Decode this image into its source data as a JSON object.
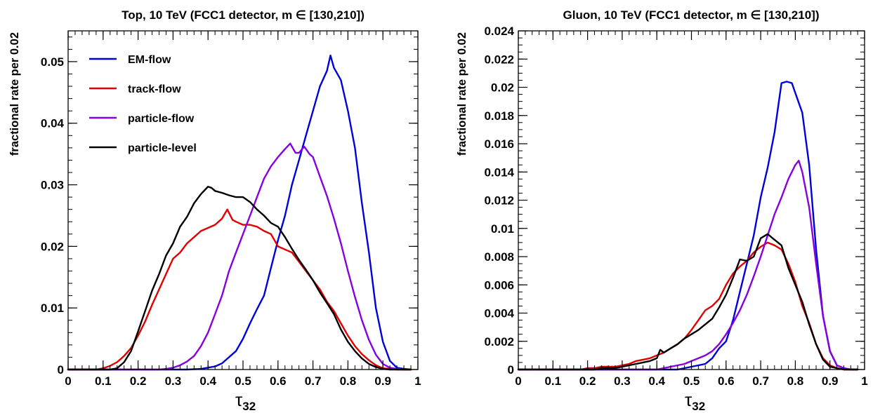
{
  "chart_data": [
    {
      "type": "line",
      "title": "Top, 10 TeV (FCC1 detector, m ∈ [130,210])",
      "xlabel_symbol": "τ",
      "xlabel_sub": "32",
      "ylabel": "fractional rate per 0.02",
      "xlim": [
        0,
        1
      ],
      "ylim": [
        0,
        0.055
      ],
      "xticks": [
        0,
        0.1,
        0.2,
        0.3,
        0.4,
        0.5,
        0.6,
        0.7,
        0.8,
        0.9,
        1
      ],
      "xtick_labels": [
        "0",
        "0.1",
        "0.2",
        "0.3",
        "0.4",
        "0.5",
        "0.6",
        "0.7",
        "0.8",
        "0.9",
        "1"
      ],
      "yticks": [
        0,
        0.01,
        0.02,
        0.03,
        0.04,
        0.05
      ],
      "ytick_labels": [
        "0",
        "0.01",
        "0.02",
        "0.03",
        "0.04",
        "0.05"
      ],
      "x_minor_step": 0.02,
      "y_minor_step": 0.002,
      "legend_position": "top-left",
      "series": [
        {
          "name": "EM-flow",
          "color": "#0000dd",
          "x": [
            0,
            0.34,
            0.38,
            0.42,
            0.44,
            0.46,
            0.48,
            0.5,
            0.52,
            0.54,
            0.56,
            0.58,
            0.6,
            0.62,
            0.64,
            0.66,
            0.68,
            0.7,
            0.72,
            0.74,
            0.75,
            0.76,
            0.78,
            0.8,
            0.82,
            0.84,
            0.86,
            0.88,
            0.9,
            0.92,
            0.94,
            0.96,
            0.98
          ],
          "y": [
            0,
            0,
            0.0001,
            0.0005,
            0.001,
            0.002,
            0.003,
            0.005,
            0.0075,
            0.0098,
            0.012,
            0.0165,
            0.021,
            0.025,
            0.03,
            0.034,
            0.038,
            0.042,
            0.046,
            0.0485,
            0.051,
            0.049,
            0.047,
            0.042,
            0.036,
            0.027,
            0.019,
            0.01,
            0.0045,
            0.0014,
            0.0003,
            0.0001,
            0
          ]
        },
        {
          "name": "track-flow",
          "color": "#e00000",
          "x": [
            0,
            0.08,
            0.1,
            0.12,
            0.14,
            0.16,
            0.18,
            0.2,
            0.22,
            0.24,
            0.26,
            0.28,
            0.3,
            0.32,
            0.34,
            0.36,
            0.38,
            0.4,
            0.42,
            0.44,
            0.455,
            0.47,
            0.48,
            0.5,
            0.52,
            0.54,
            0.56,
            0.58,
            0.6,
            0.62,
            0.64,
            0.66,
            0.68,
            0.7,
            0.72,
            0.74,
            0.76,
            0.78,
            0.8,
            0.82,
            0.84,
            0.86,
            0.88,
            0.9,
            0.92,
            0.94,
            0.96,
            0.98
          ],
          "y": [
            0,
            0,
            0.0002,
            0.0006,
            0.0012,
            0.0022,
            0.0035,
            0.0055,
            0.0078,
            0.0105,
            0.013,
            0.0155,
            0.018,
            0.019,
            0.0205,
            0.0215,
            0.0225,
            0.023,
            0.0235,
            0.0245,
            0.026,
            0.0243,
            0.024,
            0.0235,
            0.0235,
            0.0232,
            0.0225,
            0.022,
            0.02,
            0.0195,
            0.019,
            0.0175,
            0.016,
            0.0145,
            0.013,
            0.011,
            0.0095,
            0.0075,
            0.0055,
            0.0038,
            0.0025,
            0.0015,
            0.0007,
            0.0002,
            0.0001,
            0,
            0,
            0
          ]
        },
        {
          "name": "particle-flow",
          "color": "#8800dd",
          "x": [
            0,
            0.26,
            0.28,
            0.3,
            0.32,
            0.34,
            0.36,
            0.38,
            0.4,
            0.42,
            0.44,
            0.46,
            0.48,
            0.5,
            0.52,
            0.54,
            0.56,
            0.58,
            0.6,
            0.62,
            0.635,
            0.65,
            0.66,
            0.675,
            0.69,
            0.7,
            0.72,
            0.74,
            0.76,
            0.78,
            0.8,
            0.82,
            0.84,
            0.86,
            0.88,
            0.9,
            0.92,
            0.94,
            0.96,
            0.98
          ],
          "y": [
            0,
            0,
            0.0001,
            0.0003,
            0.0007,
            0.0013,
            0.0022,
            0.0038,
            0.006,
            0.009,
            0.012,
            0.016,
            0.019,
            0.022,
            0.025,
            0.028,
            0.031,
            0.033,
            0.0345,
            0.0358,
            0.0367,
            0.0352,
            0.0352,
            0.0362,
            0.035,
            0.0345,
            0.0313,
            0.0282,
            0.0245,
            0.0205,
            0.016,
            0.0118,
            0.008,
            0.0048,
            0.0024,
            0.0009,
            0.0003,
            0.0001,
            0,
            0
          ]
        },
        {
          "name": "particle-level",
          "color": "#000000",
          "x": [
            0,
            0.12,
            0.14,
            0.16,
            0.18,
            0.2,
            0.22,
            0.24,
            0.26,
            0.28,
            0.3,
            0.32,
            0.34,
            0.36,
            0.38,
            0.4,
            0.41,
            0.42,
            0.44,
            0.46,
            0.48,
            0.5,
            0.52,
            0.54,
            0.56,
            0.58,
            0.6,
            0.62,
            0.64,
            0.66,
            0.68,
            0.7,
            0.72,
            0.74,
            0.76,
            0.78,
            0.8,
            0.82,
            0.84,
            0.86,
            0.88,
            0.9,
            0.92,
            0.94,
            0.96,
            0.98
          ],
          "y": [
            0,
            0,
            0.0002,
            0.0012,
            0.003,
            0.0062,
            0.0095,
            0.0128,
            0.0155,
            0.0185,
            0.0205,
            0.0232,
            0.0248,
            0.027,
            0.0285,
            0.0297,
            0.0295,
            0.029,
            0.0287,
            0.0283,
            0.028,
            0.028,
            0.0272,
            0.026,
            0.025,
            0.0238,
            0.0232,
            0.0215,
            0.0196,
            0.0178,
            0.0162,
            0.0145,
            0.0125,
            0.0108,
            0.009,
            0.0065,
            0.0045,
            0.003,
            0.0018,
            0.0009,
            0.0004,
            0.0001,
            0,
            0,
            0,
            0
          ]
        }
      ]
    },
    {
      "type": "line",
      "title": "Gluon, 10 TeV (FCC1 detector, m ∈ [130,210])",
      "xlabel_symbol": "τ",
      "xlabel_sub": "32",
      "ylabel": "fractional rate per 0.02",
      "xlim": [
        0,
        1
      ],
      "ylim": [
        0,
        0.024
      ],
      "xticks": [
        0,
        0.1,
        0.2,
        0.3,
        0.4,
        0.5,
        0.6,
        0.7,
        0.8,
        0.9,
        1
      ],
      "xtick_labels": [
        "0",
        "0.1",
        "0.2",
        "0.3",
        "0.4",
        "0.5",
        "0.6",
        "0.7",
        "0.8",
        "0.9",
        "1"
      ],
      "yticks": [
        0,
        0.002,
        0.004,
        0.006,
        0.008,
        0.01,
        0.012,
        0.014,
        0.016,
        0.018,
        0.02,
        0.022,
        0.024
      ],
      "ytick_labels": [
        "0",
        "0.002",
        "0.004",
        "0.006",
        "0.008",
        "0.01",
        "0.012",
        "0.014",
        "0.016",
        "0.018",
        "0.02",
        "0.022",
        "0.024"
      ],
      "x_minor_step": 0.02,
      "y_minor_step": 0.0005,
      "series": [
        {
          "name": "EM-flow",
          "color": "#0000dd",
          "x": [
            0,
            0.46,
            0.48,
            0.5,
            0.52,
            0.54,
            0.56,
            0.58,
            0.6,
            0.62,
            0.64,
            0.66,
            0.68,
            0.7,
            0.72,
            0.74,
            0.76,
            0.775,
            0.79,
            0.8,
            0.82,
            0.84,
            0.86,
            0.88,
            0.9,
            0.92,
            0.94,
            0.96,
            0.98
          ],
          "y": [
            0,
            0,
            0.0001,
            0.0002,
            0.0003,
            0.0004,
            0.0008,
            0.0015,
            0.002,
            0.0035,
            0.0055,
            0.0075,
            0.0095,
            0.0122,
            0.0143,
            0.0168,
            0.0203,
            0.0204,
            0.0203,
            0.0196,
            0.0182,
            0.0145,
            0.0085,
            0.0038,
            0.0013,
            0.0003,
            0.0001,
            0,
            0
          ]
        },
        {
          "name": "track-flow",
          "color": "#e00000",
          "x": [
            0,
            0.18,
            0.2,
            0.22,
            0.24,
            0.26,
            0.28,
            0.3,
            0.32,
            0.34,
            0.36,
            0.38,
            0.4,
            0.42,
            0.44,
            0.46,
            0.48,
            0.5,
            0.52,
            0.54,
            0.56,
            0.58,
            0.6,
            0.62,
            0.64,
            0.66,
            0.68,
            0.7,
            0.72,
            0.74,
            0.76,
            0.78,
            0.8,
            0.82,
            0.84,
            0.86,
            0.88,
            0.9,
            0.92,
            0.94,
            0.96,
            0.98
          ],
          "y": [
            0,
            0,
            0.0001,
            0.0001,
            0.0002,
            0.0002,
            0.0002,
            0.0003,
            0.0004,
            0.0006,
            0.0007,
            0.0008,
            0.001,
            0.0012,
            0.0015,
            0.0018,
            0.0022,
            0.0028,
            0.0035,
            0.0042,
            0.0045,
            0.005,
            0.006,
            0.0068,
            0.0073,
            0.0077,
            0.0083,
            0.0087,
            0.009,
            0.0088,
            0.0085,
            0.0075,
            0.0062,
            0.0045,
            0.0033,
            0.0018,
            0.0008,
            0.0003,
            0.0001,
            0,
            0,
            0
          ]
        },
        {
          "name": "particle-flow",
          "color": "#8800dd",
          "x": [
            0,
            0.4,
            0.42,
            0.44,
            0.46,
            0.48,
            0.5,
            0.52,
            0.54,
            0.56,
            0.58,
            0.6,
            0.62,
            0.64,
            0.66,
            0.68,
            0.7,
            0.72,
            0.74,
            0.76,
            0.78,
            0.8,
            0.81,
            0.82,
            0.84,
            0.86,
            0.88,
            0.9,
            0.92,
            0.94,
            0.96,
            0.98
          ],
          "y": [
            0,
            0,
            0.0001,
            0.0002,
            0.0003,
            0.0004,
            0.0006,
            0.0008,
            0.001,
            0.0013,
            0.0018,
            0.0025,
            0.0033,
            0.0042,
            0.0053,
            0.0066,
            0.008,
            0.0095,
            0.011,
            0.0122,
            0.0135,
            0.0145,
            0.0148,
            0.014,
            0.0115,
            0.0075,
            0.0038,
            0.0013,
            0.0003,
            0.0001,
            0,
            0
          ]
        },
        {
          "name": "particle-level",
          "color": "#000000",
          "x": [
            0,
            0.22,
            0.24,
            0.26,
            0.28,
            0.3,
            0.32,
            0.34,
            0.36,
            0.38,
            0.4,
            0.41,
            0.42,
            0.44,
            0.46,
            0.48,
            0.5,
            0.52,
            0.54,
            0.56,
            0.58,
            0.6,
            0.62,
            0.64,
            0.66,
            0.68,
            0.7,
            0.72,
            0.74,
            0.76,
            0.78,
            0.8,
            0.82,
            0.84,
            0.86,
            0.88,
            0.9,
            0.92,
            0.94,
            0.96,
            0.98
          ],
          "y": [
            0,
            0,
            0.0001,
            0.0001,
            0.0001,
            0.0002,
            0.0003,
            0.0004,
            0.0005,
            0.0006,
            0.0008,
            0.0014,
            0.0012,
            0.0015,
            0.0018,
            0.0022,
            0.0025,
            0.0028,
            0.0032,
            0.0036,
            0.0044,
            0.0053,
            0.0065,
            0.0078,
            0.0077,
            0.008,
            0.0093,
            0.0096,
            0.0092,
            0.0088,
            0.0072,
            0.006,
            0.0048,
            0.0032,
            0.0018,
            0.0007,
            0.0002,
            0.0001,
            0,
            0,
            0
          ]
        }
      ]
    }
  ]
}
